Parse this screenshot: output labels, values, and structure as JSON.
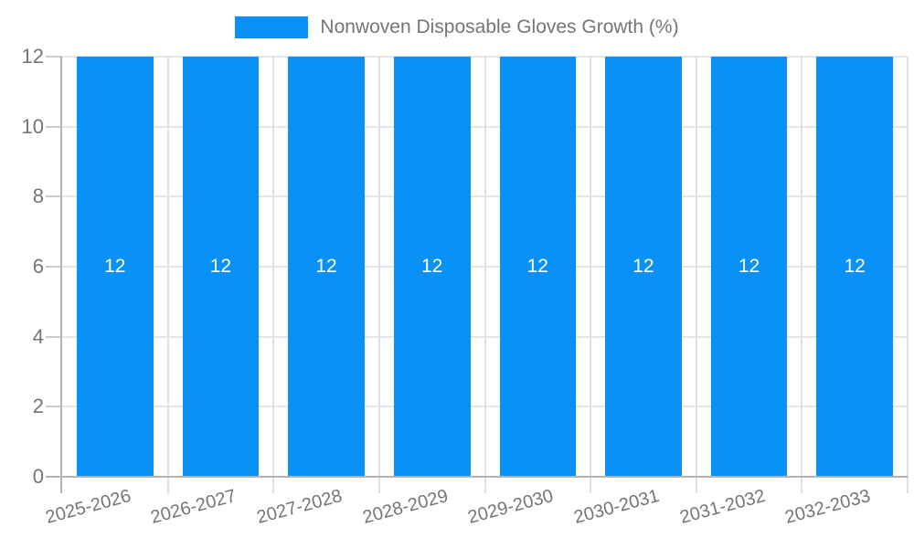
{
  "legend": {
    "label": "Nonwoven Disposable Gloves Growth (%)",
    "swatch_color": "#0a91f5"
  },
  "chart_data": {
    "type": "bar",
    "title": "Nonwoven Disposable Gloves Growth (%)",
    "categories": [
      "2025-2026",
      "2026-2027",
      "2027-2028",
      "2028-2029",
      "2029-2030",
      "2030-2031",
      "2031-2032",
      "2032-2033"
    ],
    "series": [
      {
        "name": "Nonwoven Disposable Gloves Growth (%)",
        "values": [
          12,
          12,
          12,
          12,
          12,
          12,
          12,
          12
        ]
      }
    ],
    "bar_value_labels": [
      "12",
      "12",
      "12",
      "12",
      "12",
      "12",
      "12",
      "12"
    ],
    "xlabel": "",
    "ylabel": "",
    "ylim": [
      0,
      12
    ],
    "yticks": [
      0,
      2,
      4,
      6,
      8,
      10,
      12
    ],
    "grid": true,
    "legend_position": "top"
  },
  "colors": {
    "bar": "#0a91f5",
    "axis": "#b3b3b3",
    "tick": "#cccccc",
    "grid_horizontal": "#e6e6e6",
    "grid_vertical": "#e0e0e0",
    "text": "#757575",
    "value_label": "#ffffff",
    "background": "#ffffff"
  }
}
